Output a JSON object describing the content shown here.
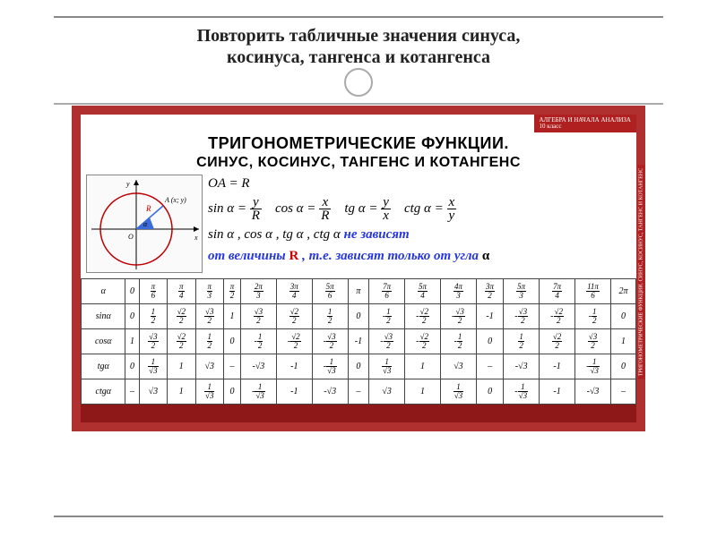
{
  "colors": {
    "poster_border": "#b03030",
    "tab_bg": "#b02020",
    "bottom_bg": "#8e1818",
    "circle_stroke": "#b00",
    "angle_fill": "#3a6bd8",
    "def_blue": "#2536e0",
    "def_red": "#c00000"
  },
  "slide": {
    "title_l1": "Повторить табличные значения синуса,",
    "title_l2": "косинуса, тангенса и котангенса"
  },
  "poster": {
    "tab_l1": "АЛГЕБРА И НАЧАЛА АНАЛИЗА",
    "tab_l2": "10 класс",
    "title": "ТРИГОНОМЕТРИЧЕСКИЕ ФУНКЦИИ.",
    "subtitle": "СИНУС, КОСИНУС, ТАНГЕНС И КОТАНГЕНС",
    "side_label": "ТРИГОНОМЕТРИЧЕСКИЕ ФУНКЦИИ. СИНУС, КОСИНУС, ТАНГЕНС И КОТАНГЕНС",
    "oa_r": "OA = R",
    "sin_lhs": "sin α =",
    "sin_n": "y",
    "sin_d": "R",
    "cos_lhs": "cos α =",
    "cos_n": "x",
    "cos_d": "R",
    "tg_lhs": "tg α =",
    "tg_n": "y",
    "tg_d": "x",
    "ctg_lhs": "ctg α =",
    "ctg_n": "x",
    "ctg_d": "y",
    "note_funcs": "sin α , cos α , tg α , ctg α",
    "note_tail1": " не зависят",
    "note_l2a": "от величины ",
    "note_R": "R",
    "note_l2b": ", т.е. зависят только от угла ",
    "note_alpha": "α",
    "circle_label_A": "A (x; y)",
    "circle_label_O": "O",
    "circle_label_R": "R",
    "circle_label_alpha": "α",
    "circle_label_x": "x",
    "circle_label_y": "y"
  },
  "table": {
    "row_labels": [
      "α",
      "sinα",
      "cosα",
      "tgα",
      "ctgα"
    ],
    "angles": [
      {
        "t": "0"
      },
      {
        "n": "π",
        "d": "6"
      },
      {
        "n": "π",
        "d": "4"
      },
      {
        "n": "π",
        "d": "3"
      },
      {
        "n": "π",
        "d": "2"
      },
      {
        "n": "2π",
        "d": "3"
      },
      {
        "n": "3π",
        "d": "4"
      },
      {
        "n": "5π",
        "d": "6"
      },
      {
        "t": "π"
      },
      {
        "n": "7π",
        "d": "6"
      },
      {
        "n": "5π",
        "d": "4"
      },
      {
        "n": "4π",
        "d": "3"
      },
      {
        "n": "3π",
        "d": "2"
      },
      {
        "n": "5π",
        "d": "3"
      },
      {
        "n": "7π",
        "d": "4"
      },
      {
        "n": "11π",
        "d": "6"
      },
      {
        "t": "2π"
      }
    ],
    "sin": [
      {
        "t": "0"
      },
      {
        "n": "1",
        "d": "2"
      },
      {
        "n": "√2",
        "d": "2"
      },
      {
        "n": "√3",
        "d": "2"
      },
      {
        "t": "1"
      },
      {
        "n": "√3",
        "d": "2"
      },
      {
        "n": "√2",
        "d": "2"
      },
      {
        "n": "1",
        "d": "2"
      },
      {
        "t": "0"
      },
      {
        "s": "-",
        "n": "1",
        "d": "2"
      },
      {
        "s": "-",
        "n": "√2",
        "d": "2"
      },
      {
        "s": "-",
        "n": "√3",
        "d": "2"
      },
      {
        "t": "-1"
      },
      {
        "s": "-",
        "n": "√3",
        "d": "2"
      },
      {
        "s": "-",
        "n": "√2",
        "d": "2"
      },
      {
        "s": "-",
        "n": "1",
        "d": "2"
      },
      {
        "t": "0"
      }
    ],
    "cos": [
      {
        "t": "1"
      },
      {
        "n": "√3",
        "d": "2"
      },
      {
        "n": "√2",
        "d": "2"
      },
      {
        "n": "1",
        "d": "2"
      },
      {
        "t": "0"
      },
      {
        "s": "-",
        "n": "1",
        "d": "2"
      },
      {
        "s": "-",
        "n": "√2",
        "d": "2"
      },
      {
        "s": "-",
        "n": "√3",
        "d": "2"
      },
      {
        "t": "-1"
      },
      {
        "s": "-",
        "n": "√3",
        "d": "2"
      },
      {
        "s": "-",
        "n": "√2",
        "d": "2"
      },
      {
        "s": "-",
        "n": "1",
        "d": "2"
      },
      {
        "t": "0"
      },
      {
        "n": "1",
        "d": "2"
      },
      {
        "n": "√2",
        "d": "2"
      },
      {
        "n": "√3",
        "d": "2"
      },
      {
        "t": "1"
      }
    ],
    "tg": [
      {
        "t": "0"
      },
      {
        "n": "1",
        "d": "√3"
      },
      {
        "t": "1"
      },
      {
        "t": "√3"
      },
      {
        "t": "–"
      },
      {
        "t": "-√3"
      },
      {
        "t": "-1"
      },
      {
        "s": "-",
        "n": "1",
        "d": "√3"
      },
      {
        "t": "0"
      },
      {
        "n": "1",
        "d": "√3"
      },
      {
        "t": "1"
      },
      {
        "t": "√3"
      },
      {
        "t": "–"
      },
      {
        "t": "-√3"
      },
      {
        "t": "-1"
      },
      {
        "s": "-",
        "n": "1",
        "d": "√3"
      },
      {
        "t": "0"
      }
    ],
    "ctg": [
      {
        "t": "–"
      },
      {
        "t": "√3"
      },
      {
        "t": "1"
      },
      {
        "n": "1",
        "d": "√3"
      },
      {
        "t": "0"
      },
      {
        "s": "-",
        "n": "1",
        "d": "√3"
      },
      {
        "t": "-1"
      },
      {
        "t": "-√3"
      },
      {
        "t": "–"
      },
      {
        "t": "√3"
      },
      {
        "t": "1"
      },
      {
        "n": "1",
        "d": "√3"
      },
      {
        "t": "0"
      },
      {
        "s": "-",
        "n": "1",
        "d": "√3"
      },
      {
        "t": "-1"
      },
      {
        "t": "-√3"
      },
      {
        "t": "–"
      }
    ]
  }
}
